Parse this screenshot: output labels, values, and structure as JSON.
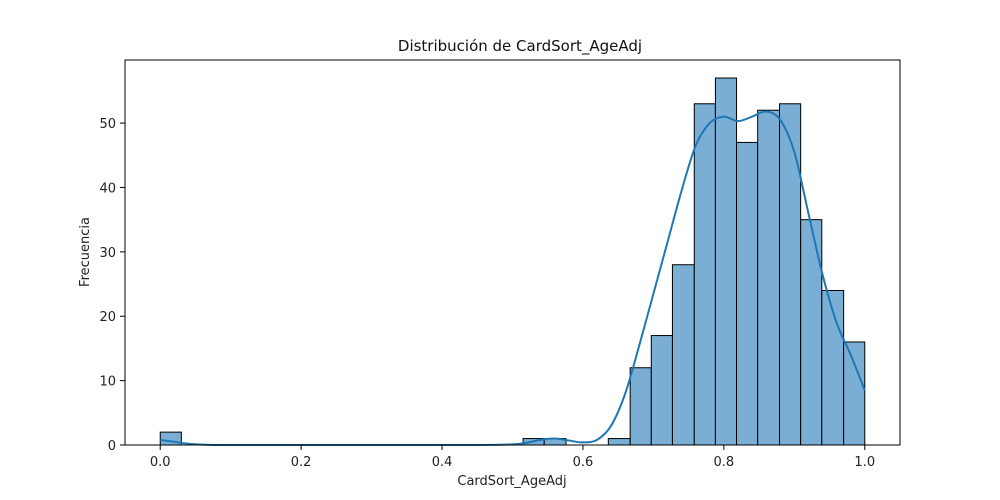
{
  "chart_data": {
    "type": "bar",
    "title": "Distribución de CardSort_AgeAdj",
    "xlabel": "CardSort_AgeAdj",
    "ylabel": "Frecuencia",
    "xlim": [
      -0.05,
      1.05
    ],
    "ylim": [
      0,
      59.8
    ],
    "xticks": [
      0.0,
      0.2,
      0.4,
      0.6,
      0.8,
      1.0
    ],
    "xtick_labels": [
      "0.0",
      "0.2",
      "0.4",
      "0.6",
      "0.8",
      "1.0"
    ],
    "yticks": [
      0,
      10,
      20,
      30,
      40,
      50
    ],
    "ytick_labels": [
      "0",
      "10",
      "20",
      "30",
      "40",
      "50"
    ],
    "grid": false,
    "bin_width": 0.0303,
    "bins": [
      {
        "x0": 0.0,
        "x1": 0.03,
        "count": 2
      },
      {
        "x0": 0.515,
        "x1": 0.545,
        "count": 1
      },
      {
        "x0": 0.545,
        "x1": 0.576,
        "count": 1
      },
      {
        "x0": 0.636,
        "x1": 0.667,
        "count": 1
      },
      {
        "x0": 0.667,
        "x1": 0.697,
        "count": 12
      },
      {
        "x0": 0.697,
        "x1": 0.727,
        "count": 17
      },
      {
        "x0": 0.727,
        "x1": 0.758,
        "count": 28
      },
      {
        "x0": 0.758,
        "x1": 0.788,
        "count": 53
      },
      {
        "x0": 0.788,
        "x1": 0.818,
        "count": 57
      },
      {
        "x0": 0.818,
        "x1": 0.848,
        "count": 47
      },
      {
        "x0": 0.848,
        "x1": 0.879,
        "count": 52
      },
      {
        "x0": 0.879,
        "x1": 0.909,
        "count": 53
      },
      {
        "x0": 0.909,
        "x1": 0.939,
        "count": 35
      },
      {
        "x0": 0.939,
        "x1": 0.97,
        "count": 24
      },
      {
        "x0": 0.97,
        "x1": 1.0,
        "count": 16
      }
    ],
    "kde": {
      "x": [
        0.0,
        0.02,
        0.04,
        0.08,
        0.2,
        0.4,
        0.5,
        0.54,
        0.56,
        0.58,
        0.6,
        0.62,
        0.64,
        0.66,
        0.68,
        0.7,
        0.72,
        0.74,
        0.76,
        0.78,
        0.8,
        0.82,
        0.84,
        0.86,
        0.88,
        0.9,
        0.92,
        0.94,
        0.96,
        0.98,
        1.0
      ],
      "y": [
        0.8,
        0.5,
        0.2,
        0.0,
        0.0,
        0.0,
        0.1,
        0.8,
        1.0,
        0.7,
        0.4,
        0.8,
        3.0,
        8.0,
        15.5,
        23.5,
        31.5,
        39.5,
        46.5,
        50.0,
        51.0,
        50.3,
        51.0,
        51.8,
        50.5,
        45.5,
        36.0,
        26.5,
        19.0,
        14.0,
        8.5
      ]
    },
    "colors": {
      "bar_fill": "#7aaed4",
      "bar_edge": "#000000",
      "kde_line": "#1f77b4"
    }
  }
}
